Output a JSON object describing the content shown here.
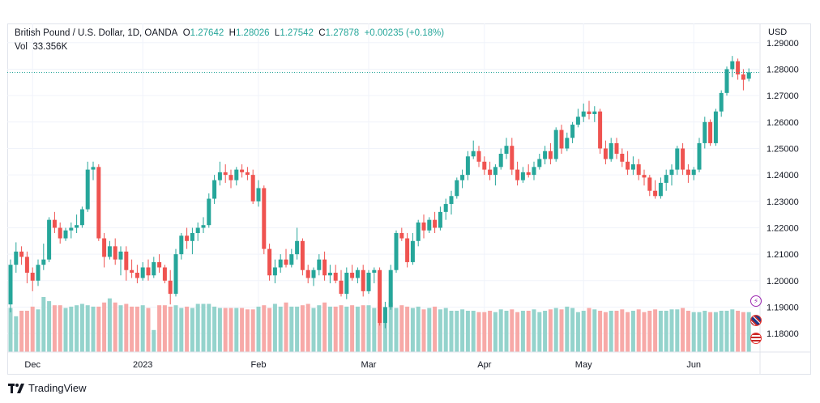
{
  "legend": {
    "symbol": "British Pound / U.S. Dollar, 1D, OANDA",
    "o_label": "O",
    "o_value": "1.27642",
    "h_label": "H",
    "h_value": "1.28026",
    "l_label": "L",
    "l_value": "1.27542",
    "c_label": "C",
    "c_value": "1.27878",
    "change": "+0.00235 (+0.18%)",
    "vol_label": "Vol",
    "vol_value": "33.356K"
  },
  "currency": "USD",
  "branding": {
    "name": "TradingView"
  },
  "markers": [
    {
      "icon": "lightning-icon",
      "color": "#9c27b0"
    },
    {
      "icon": "uk-flag-icon",
      "color": "#e53935"
    },
    {
      "icon": "us-flag-icon",
      "color": "#e53935"
    }
  ],
  "colors": {
    "up": "#26a69a",
    "down": "#ef5350",
    "vol_up": "#94d3cc",
    "vol_down": "#f7a9a7",
    "grid": "#f0f3fa",
    "last_price_line": "#26a69a"
  },
  "chart_data": {
    "type": "candlestick",
    "title": "British Pound / U.S. Dollar, 1D, OANDA",
    "ylim": [
      1.173,
      1.293
    ],
    "y_ticks": [
      "1.18000",
      "1.19000",
      "1.20000",
      "1.21000",
      "1.22000",
      "1.23000",
      "1.24000",
      "1.25000",
      "1.26000",
      "1.27000",
      "1.28000",
      "1.29000"
    ],
    "x_ticks": [
      "Dec",
      "2023",
      "Feb",
      "Mar",
      "Apr",
      "May",
      "Jun"
    ],
    "last_close": 1.27878,
    "candles": [
      [
        1.191,
        1.208,
        1.188,
        1.206
      ],
      [
        1.206,
        1.2145,
        1.203,
        1.211
      ],
      [
        1.211,
        1.213,
        1.206,
        1.209
      ],
      [
        1.209,
        1.211,
        1.199,
        1.203
      ],
      [
        1.203,
        1.205,
        1.196,
        1.2
      ],
      [
        1.2,
        1.208,
        1.198,
        1.206
      ],
      [
        1.206,
        1.214,
        1.204,
        1.208
      ],
      [
        1.208,
        1.224,
        1.207,
        1.223
      ],
      [
        1.223,
        1.226,
        1.218,
        1.22
      ],
      [
        1.22,
        1.222,
        1.214,
        1.216
      ],
      [
        1.216,
        1.22,
        1.215,
        1.219
      ],
      [
        1.219,
        1.222,
        1.216,
        1.22
      ],
      [
        1.22,
        1.225,
        1.218,
        1.221
      ],
      [
        1.221,
        1.228,
        1.22,
        1.227
      ],
      [
        1.227,
        1.245,
        1.226,
        1.242
      ],
      [
        1.242,
        1.245,
        1.238,
        1.243
      ],
      [
        1.243,
        1.244,
        1.215,
        1.216
      ],
      [
        1.216,
        1.218,
        1.205,
        1.209
      ],
      [
        1.209,
        1.215,
        1.208,
        1.213
      ],
      [
        1.213,
        1.216,
        1.206,
        1.208
      ],
      [
        1.208,
        1.213,
        1.202,
        1.211
      ],
      [
        1.211,
        1.213,
        1.2,
        1.204
      ],
      [
        1.204,
        1.208,
        1.201,
        1.203
      ],
      [
        1.203,
        1.206,
        1.199,
        1.201
      ],
      [
        1.201,
        1.207,
        1.2,
        1.205
      ],
      [
        1.205,
        1.208,
        1.2,
        1.202
      ],
      [
        1.202,
        1.209,
        1.201,
        1.207
      ],
      [
        1.207,
        1.21,
        1.203,
        1.205
      ],
      [
        1.205,
        1.206,
        1.199,
        1.2
      ],
      [
        1.2,
        1.204,
        1.191,
        1.195
      ],
      [
        1.195,
        1.212,
        1.194,
        1.21
      ],
      [
        1.21,
        1.218,
        1.208,
        1.217
      ],
      [
        1.217,
        1.22,
        1.212,
        1.215
      ],
      [
        1.215,
        1.22,
        1.21,
        1.218
      ],
      [
        1.218,
        1.222,
        1.215,
        1.22
      ],
      [
        1.22,
        1.224,
        1.218,
        1.221
      ],
      [
        1.221,
        1.233,
        1.22,
        1.231
      ],
      [
        1.231,
        1.24,
        1.229,
        1.238
      ],
      [
        1.238,
        1.245,
        1.236,
        1.241
      ],
      [
        1.241,
        1.244,
        1.237,
        1.24
      ],
      [
        1.24,
        1.242,
        1.235,
        1.238
      ],
      [
        1.238,
        1.243,
        1.236,
        1.242
      ],
      [
        1.242,
        1.244,
        1.239,
        1.241
      ],
      [
        1.241,
        1.243,
        1.238,
        1.24
      ],
      [
        1.24,
        1.242,
        1.229,
        1.23
      ],
      [
        1.23,
        1.238,
        1.228,
        1.235
      ],
      [
        1.235,
        1.236,
        1.21,
        1.212
      ],
      [
        1.212,
        1.214,
        1.2,
        1.202
      ],
      [
        1.202,
        1.208,
        1.199,
        1.205
      ],
      [
        1.205,
        1.21,
        1.203,
        1.208
      ],
      [
        1.208,
        1.212,
        1.205,
        1.206
      ],
      [
        1.206,
        1.212,
        1.205,
        1.21
      ],
      [
        1.21,
        1.22,
        1.208,
        1.215
      ],
      [
        1.215,
        1.216,
        1.202,
        1.204
      ],
      [
        1.204,
        1.206,
        1.199,
        1.201
      ],
      [
        1.201,
        1.205,
        1.198,
        1.204
      ],
      [
        1.204,
        1.21,
        1.202,
        1.208
      ],
      [
        1.208,
        1.211,
        1.2,
        1.202
      ],
      [
        1.202,
        1.206,
        1.199,
        1.203
      ],
      [
        1.203,
        1.206,
        1.199,
        1.2
      ],
      [
        1.2,
        1.204,
        1.194,
        1.195
      ],
      [
        1.195,
        1.205,
        1.193,
        1.203
      ],
      [
        1.203,
        1.206,
        1.2,
        1.201
      ],
      [
        1.201,
        1.205,
        1.199,
        1.204
      ],
      [
        1.204,
        1.206,
        1.194,
        1.196
      ],
      [
        1.196,
        1.204,
        1.195,
        1.203
      ],
      [
        1.203,
        1.205,
        1.199,
        1.204
      ],
      [
        1.204,
        1.205,
        1.183,
        1.184
      ],
      [
        1.184,
        1.192,
        1.182,
        1.19
      ],
      [
        1.19,
        1.206,
        1.189,
        1.204
      ],
      [
        1.204,
        1.219,
        1.203,
        1.218
      ],
      [
        1.218,
        1.22,
        1.215,
        1.216
      ],
      [
        1.216,
        1.218,
        1.205,
        1.207
      ],
      [
        1.207,
        1.218,
        1.206,
        1.215
      ],
      [
        1.215,
        1.223,
        1.213,
        1.222
      ],
      [
        1.222,
        1.225,
        1.216,
        1.219
      ],
      [
        1.219,
        1.224,
        1.218,
        1.223
      ],
      [
        1.223,
        1.226,
        1.218,
        1.22
      ],
      [
        1.22,
        1.228,
        1.219,
        1.226
      ],
      [
        1.226,
        1.231,
        1.223,
        1.229
      ],
      [
        1.229,
        1.234,
        1.225,
        1.232
      ],
      [
        1.232,
        1.239,
        1.231,
        1.238
      ],
      [
        1.238,
        1.242,
        1.235,
        1.24
      ],
      [
        1.24,
        1.249,
        1.238,
        1.247
      ],
      [
        1.247,
        1.253,
        1.246,
        1.249
      ],
      [
        1.249,
        1.251,
        1.243,
        1.245
      ],
      [
        1.245,
        1.247,
        1.24,
        1.242
      ],
      [
        1.242,
        1.245,
        1.238,
        1.24
      ],
      [
        1.24,
        1.244,
        1.236,
        1.243
      ],
      [
        1.243,
        1.25,
        1.242,
        1.248
      ],
      [
        1.248,
        1.254,
        1.246,
        1.251
      ],
      [
        1.251,
        1.254,
        1.24,
        1.242
      ],
      [
        1.242,
        1.245,
        1.236,
        1.238
      ],
      [
        1.238,
        1.243,
        1.237,
        1.241
      ],
      [
        1.241,
        1.244,
        1.239,
        1.24
      ],
      [
        1.24,
        1.245,
        1.238,
        1.243
      ],
      [
        1.243,
        1.248,
        1.242,
        1.246
      ],
      [
        1.246,
        1.251,
        1.244,
        1.249
      ],
      [
        1.249,
        1.252,
        1.244,
        1.246
      ],
      [
        1.246,
        1.258,
        1.245,
        1.257
      ],
      [
        1.257,
        1.259,
        1.248,
        1.25
      ],
      [
        1.25,
        1.256,
        1.249,
        1.254
      ],
      [
        1.254,
        1.26,
        1.252,
        1.259
      ],
      [
        1.259,
        1.265,
        1.258,
        1.262
      ],
      [
        1.262,
        1.267,
        1.26,
        1.264
      ],
      [
        1.264,
        1.268,
        1.261,
        1.263
      ],
      [
        1.263,
        1.266,
        1.26,
        1.264
      ],
      [
        1.264,
        1.265,
        1.248,
        1.25
      ],
      [
        1.25,
        1.253,
        1.244,
        1.246
      ],
      [
        1.246,
        1.254,
        1.245,
        1.252
      ],
      [
        1.252,
        1.254,
        1.246,
        1.248
      ],
      [
        1.248,
        1.25,
        1.243,
        1.245
      ],
      [
        1.245,
        1.249,
        1.24,
        1.242
      ],
      [
        1.242,
        1.247,
        1.24,
        1.244
      ],
      [
        1.244,
        1.246,
        1.238,
        1.24
      ],
      [
        1.24,
        1.242,
        1.236,
        1.239
      ],
      [
        1.239,
        1.24,
        1.232,
        1.234
      ],
      [
        1.234,
        1.238,
        1.231,
        1.232
      ],
      [
        1.232,
        1.239,
        1.231,
        1.237
      ],
      [
        1.237,
        1.242,
        1.234,
        1.24
      ],
      [
        1.24,
        1.244,
        1.236,
        1.242
      ],
      [
        1.242,
        1.251,
        1.24,
        1.25
      ],
      [
        1.25,
        1.252,
        1.24,
        1.242
      ],
      [
        1.242,
        1.244,
        1.237,
        1.24
      ],
      [
        1.24,
        1.243,
        1.238,
        1.242
      ],
      [
        1.242,
        1.254,
        1.241,
        1.252
      ],
      [
        1.252,
        1.262,
        1.25,
        1.26
      ],
      [
        1.26,
        1.261,
        1.251,
        1.252
      ],
      [
        1.252,
        1.265,
        1.251,
        1.264
      ],
      [
        1.264,
        1.272,
        1.262,
        1.271
      ],
      [
        1.271,
        1.281,
        1.27,
        1.28
      ],
      [
        1.28,
        1.285,
        1.277,
        1.283
      ],
      [
        1.283,
        1.284,
        1.276,
        1.278
      ],
      [
        1.278,
        1.28,
        1.272,
        1.276
      ],
      [
        1.2764,
        1.2803,
        1.2754,
        1.2788
      ]
    ],
    "volume": [
      32,
      26,
      30,
      30,
      33,
      31,
      40,
      37,
      34,
      34,
      32,
      33,
      34,
      35,
      34,
      33,
      33,
      36,
      39,
      36,
      34,
      35,
      33,
      33,
      34,
      32,
      16,
      34,
      34,
      33,
      34,
      32,
      33,
      32,
      35,
      35,
      35,
      33,
      32,
      32,
      32,
      32,
      32,
      31,
      31,
      33,
      34,
      32,
      35,
      33,
      36,
      33,
      33,
      34,
      35,
      32,
      34,
      36,
      33,
      33,
      34,
      33,
      34,
      33,
      34,
      34,
      32,
      36,
      32,
      36,
      32,
      34,
      33,
      32,
      33,
      31,
      32,
      33,
      31,
      32,
      30,
      30,
      31,
      30,
      30,
      29,
      29,
      30,
      29,
      31,
      30,
      31,
      29,
      30,
      30,
      31,
      29,
      30,
      31,
      32,
      31,
      33,
      32,
      29,
      30,
      32,
      31,
      30,
      29,
      30,
      30,
      31,
      29,
      30,
      31,
      29,
      30,
      31,
      30,
      30,
      31,
      31,
      32,
      30,
      29,
      29,
      30,
      29,
      29,
      30,
      30,
      31,
      30,
      29,
      29,
      30
    ],
    "volume_up": null
  }
}
